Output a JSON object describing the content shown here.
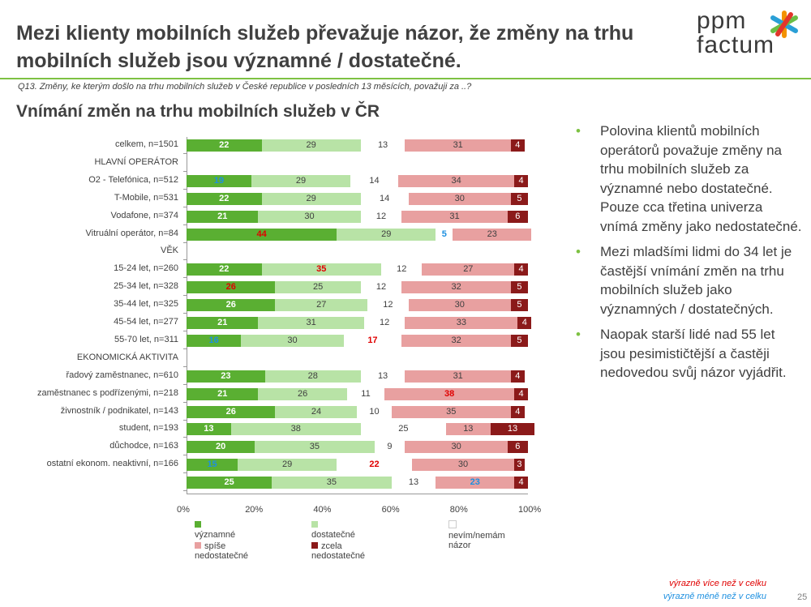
{
  "header": {
    "title": "Mezi klienty mobilních služeb převažuje názor, že změny na trhu mobilních služeb jsou významné / dostatečné.",
    "logo_text": "ppm factum",
    "question": "Q13. Změny, ke kterým došlo na trhu mobilních služeb v České republice v posledních  13 měsících, považuji za ..?",
    "subtitle": "Vnímání změn na trhu mobilních služeb v ČR"
  },
  "chart_data": {
    "type": "bar",
    "stacked": true,
    "orientation": "horizontal",
    "xlim": [
      0,
      100
    ],
    "xticks": [
      "0%",
      "20%",
      "40%",
      "60%",
      "80%",
      "100%"
    ],
    "legend_position": "bottom",
    "series": [
      {
        "name": "významné",
        "color": "#5aaf32"
      },
      {
        "name": "dostatečné",
        "color": "#b8e3a6"
      },
      {
        "name": "nevím/nemám názor",
        "color": "#ffffff"
      },
      {
        "name": "spíše nedostatečné",
        "color": "#e8a0a0"
      },
      {
        "name": "zcela nedostatečné",
        "color": "#8b1a1a"
      }
    ],
    "highlight_colors": {
      "more": "#e00000",
      "less": "#1e90e0"
    },
    "rows": [
      {
        "label": "celkem, n=1501",
        "values": [
          22,
          29,
          13,
          31,
          4
        ]
      },
      {
        "label": "HLAVNÍ OPERÁTOR",
        "header": true
      },
      {
        "label": "O2 - Telefónica, n=512",
        "values": [
          19,
          29,
          14,
          34,
          4
        ],
        "highlight": [
          "less",
          null,
          null,
          null,
          null
        ]
      },
      {
        "label": "T-Mobile, n=531",
        "values": [
          22,
          29,
          14,
          30,
          5
        ]
      },
      {
        "label": "Vodafone, n=374",
        "values": [
          21,
          30,
          12,
          31,
          6
        ]
      },
      {
        "label": "Vitruální operátor, n=84",
        "values": [
          44,
          29,
          5,
          23,
          0
        ],
        "highlight": [
          "more",
          null,
          "less",
          null,
          null
        ]
      },
      {
        "label": "VĚK",
        "header": true
      },
      {
        "label": "15-24 let, n=260",
        "values": [
          22,
          35,
          12,
          27,
          4
        ],
        "highlight": [
          null,
          "more",
          null,
          null,
          null
        ]
      },
      {
        "label": "25-34 let, n=328",
        "values": [
          26,
          25,
          12,
          32,
          5
        ],
        "highlight": [
          "more",
          null,
          null,
          null,
          null
        ]
      },
      {
        "label": "35-44 let, n=325",
        "values": [
          26,
          27,
          12,
          30,
          5
        ]
      },
      {
        "label": "45-54 let, n=277",
        "values": [
          21,
          31,
          12,
          33,
          4
        ]
      },
      {
        "label": "55-70 let, n=311",
        "values": [
          16,
          30,
          17,
          32,
          5
        ],
        "highlight": [
          "less",
          null,
          "more",
          null,
          null
        ]
      },
      {
        "label": "EKONOMICKÁ AKTIVITA",
        "header": true
      },
      {
        "label": "řadový zaměstnanec, n=610",
        "values": [
          23,
          28,
          13,
          31,
          4
        ]
      },
      {
        "label": "zaměstnanec s podřízenými, n=218",
        "values": [
          21,
          26,
          11,
          38,
          4
        ],
        "highlight": [
          null,
          null,
          null,
          "more",
          null
        ]
      },
      {
        "label": "živnostník / podnikatel, n=143",
        "values": [
          26,
          24,
          10,
          35,
          4
        ]
      },
      {
        "label": "student, n=193",
        "values": [
          13,
          38,
          25,
          13,
          13
        ]
      },
      {
        "label": "důchodce, n=163",
        "values": [
          20,
          35,
          9,
          30,
          6
        ]
      },
      {
        "label": "ostatní ekonom. neaktivní, n=166",
        "values": [
          15,
          29,
          22,
          30,
          3
        ],
        "highlight": [
          "less",
          null,
          "more",
          null,
          null
        ]
      },
      {
        "label": "",
        "values": [
          25,
          35,
          13,
          23,
          4
        ],
        "highlight": [
          null,
          null,
          null,
          "less",
          null
        ]
      }
    ]
  },
  "bullets": [
    "Polovina klientů mobilních operátorů považuje změny na trhu mobilních služeb za významné nebo dostatečné. Pouze cca třetina univerza vnímá změny jako nedostatečné.",
    "Mezi mladšími lidmi do 34 let je častější vnímání změn na trhu mobilních služeb jako významných / dostatečných.",
    "Naopak starší lidé nad 55 let jsou pesimističtější a častěji nedovedou svůj názor vyjádřit."
  ],
  "notes": {
    "more": "výrazně více než v celku",
    "less": "výrazně méně než v celku"
  },
  "page_number": "25"
}
